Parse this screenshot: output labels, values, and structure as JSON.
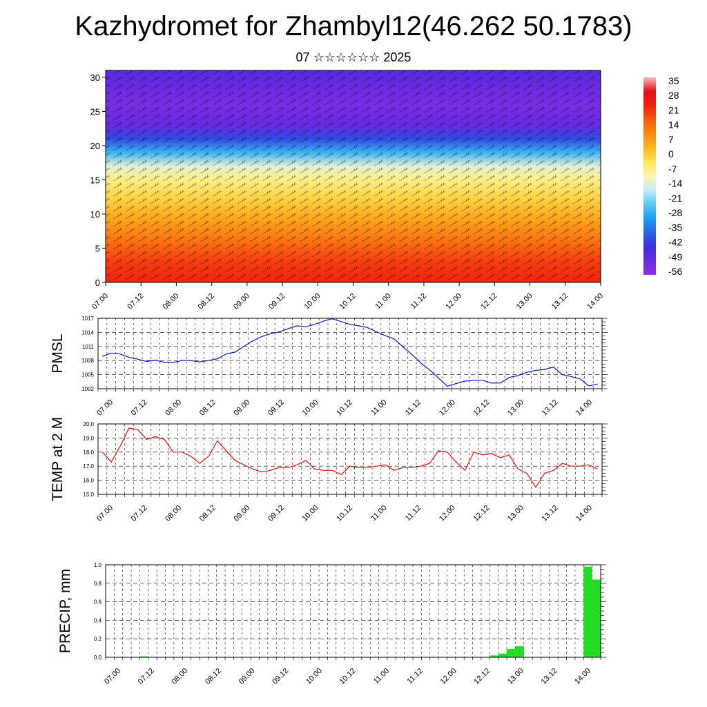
{
  "title": "Kazhydromet for Zhambyl12(46.262 50.1783)",
  "subtitle": "07 ☆☆☆☆☆☆ 2025",
  "chart_data": [
    {
      "id": "cross_section",
      "type": "heatmap",
      "description_of_values": "Temperature (°C) with wind barbs, height vs time",
      "x_tick_labels": [
        "07.00",
        "07.12",
        "08.00",
        "08.12",
        "09.00",
        "09.12",
        "10.00",
        "10.12",
        "11.00",
        "11.12",
        "12.00",
        "12.12",
        "13.00",
        "13.12",
        "14.00"
      ],
      "y_tick_labels": [
        "0",
        "5",
        "10",
        "15",
        "20",
        "25",
        "30"
      ],
      "ylim": [
        0,
        31
      ],
      "colorbar_labels": [
        "35",
        "28",
        "21",
        "14",
        "7",
        "0",
        "-7",
        "-14",
        "-21",
        "-28",
        "-35",
        "-42",
        "-49",
        "-56"
      ],
      "color_stops": [
        "#f4bcbc",
        "#e0101a",
        "#f02010",
        "#f85a10",
        "#fb8a14",
        "#fdb722",
        "#fde65a",
        "#fef5b0",
        "#c4ecfa",
        "#5ac8f5",
        "#1aa0ef",
        "#2a64e6",
        "#3a2ee0",
        "#6a2adf",
        "#8a30e6"
      ],
      "profile_heights": [
        0,
        3,
        6,
        9,
        12,
        15,
        17,
        19,
        21,
        23,
        26,
        29,
        31
      ],
      "profile_temps": [
        24,
        21,
        14,
        7,
        0,
        -7,
        -14,
        -28,
        -42,
        -52,
        -56,
        -52,
        -49
      ]
    },
    {
      "id": "pmsl",
      "type": "line",
      "ylabel": "PMSL",
      "color": "#1010d0",
      "ylim": [
        1002,
        1017
      ],
      "y_tick_labels": [
        "1002",
        "1005",
        "1008",
        "1011",
        "1014",
        "1017"
      ],
      "x_tick_labels": [
        "07.00",
        "07.12",
        "08.00",
        "08.12",
        "09.00",
        "09.12",
        "10.00",
        "10.12",
        "11.00",
        "11.12",
        "12.00",
        "12.12",
        "13.00",
        "13.12",
        "14.00"
      ],
      "values": [
        1008.9,
        1009.6,
        1009.4,
        1008.7,
        1008.3,
        1007.8,
        1008.1,
        1007.6,
        1007.6,
        1008.0,
        1008.0,
        1007.7,
        1008.0,
        1008.4,
        1009.4,
        1009.8,
        1011.0,
        1012.2,
        1013.1,
        1013.7,
        1014.1,
        1014.8,
        1015.4,
        1015.2,
        1015.7,
        1016.4,
        1016.9,
        1016.3,
        1015.7,
        1015.4,
        1015.0,
        1014.1,
        1013.3,
        1012.6,
        1010.9,
        1009.3,
        1007.5,
        1006.0,
        1004.3,
        1002.5,
        1003.1,
        1003.6,
        1003.8,
        1003.8,
        1003.2,
        1003.2,
        1004.4,
        1004.8,
        1005.5,
        1005.9,
        1006.1,
        1006.6,
        1005.0,
        1004.6,
        1004.1,
        1002.6,
        1003.0
      ]
    },
    {
      "id": "temp2m",
      "type": "line",
      "ylabel": "TEMP at 2 M",
      "color": "#e01010",
      "ylim": [
        15.0,
        20.0
      ],
      "y_tick_labels": [
        "15.0",
        "16.0",
        "17.0",
        "18.0",
        "19.0",
        "20.0"
      ],
      "x_tick_labels": [
        "07.00",
        "07.12",
        "08.00",
        "08.12",
        "09.00",
        "09.12",
        "10.00",
        "10.12",
        "11.00",
        "11.12",
        "12.00",
        "12.12",
        "13.00",
        "13.12",
        "14.00"
      ],
      "values": [
        18.0,
        17.3,
        18.4,
        19.7,
        19.6,
        18.9,
        19.1,
        18.9,
        18.0,
        18.0,
        17.7,
        17.2,
        17.7,
        18.8,
        18.1,
        17.4,
        17.1,
        16.8,
        16.6,
        16.7,
        16.9,
        16.9,
        17.1,
        17.4,
        16.8,
        16.7,
        16.7,
        16.4,
        17.0,
        16.9,
        16.9,
        17.0,
        17.1,
        16.7,
        16.9,
        16.9,
        17.0,
        17.2,
        18.1,
        18.0,
        17.3,
        16.7,
        18.0,
        17.8,
        17.9,
        17.6,
        17.8,
        16.8,
        16.5,
        15.5,
        16.5,
        16.7,
        17.2,
        17.0,
        17.0,
        17.1,
        16.8
      ]
    },
    {
      "id": "precip",
      "type": "bar",
      "ylabel": "PRECIP, mm",
      "color": "#22dd22",
      "ylim": [
        0.0,
        1.0
      ],
      "y_tick_labels": [
        "0.0",
        "0.2",
        "0.4",
        "0.6",
        "0.8",
        "1.0"
      ],
      "x_tick_labels": [
        "07.00",
        "07.12",
        "08.00",
        "08.12",
        "09.00",
        "09.12",
        "10.00",
        "10.12",
        "11.00",
        "11.12",
        "12.00",
        "12.12",
        "13.00",
        "13.12",
        "14.00"
      ],
      "values": [
        0,
        0,
        0,
        0,
        0.01,
        0,
        0,
        0,
        0,
        0,
        0,
        0,
        0,
        0,
        0,
        0,
        0,
        0,
        0,
        0,
        0,
        0,
        0,
        0,
        0,
        0,
        0,
        0,
        0,
        0,
        0,
        0,
        0,
        0,
        0,
        0,
        0,
        0,
        0,
        0,
        0,
        0,
        0,
        0,
        0,
        0.02,
        0.04,
        0.09,
        0.12,
        0,
        0,
        0,
        0,
        0,
        0,
        0,
        0.98,
        0.84
      ]
    }
  ]
}
